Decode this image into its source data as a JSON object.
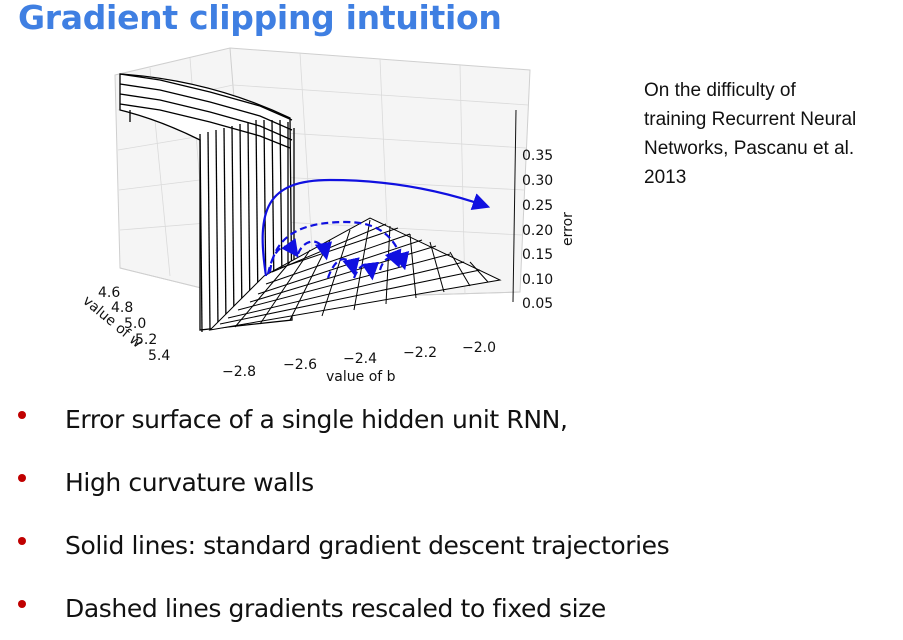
{
  "title": "Gradient clipping intuition",
  "citation": {
    "lines": [
      "On the difficulty of",
      "training Recurrent Neural",
      "Networks, Pascanu et al.",
      "2013"
    ]
  },
  "figure": {
    "z_axis_label": "error",
    "z_ticks": [
      "0.35",
      "0.30",
      "0.25",
      "0.20",
      "0.15",
      "0.10",
      "0.05"
    ],
    "x_axis_label": "value of b",
    "x_ticks": [
      "−2.8",
      "−2.6",
      "−2.4",
      "−2.2",
      "−2.0"
    ],
    "w_axis_label": "value of w",
    "w_ticks": [
      "4.6",
      "4.8",
      "5.0",
      "5.2",
      "5.4"
    ],
    "trajectory_color": "#1010e0"
  },
  "bullets": [
    "Error surface of a single hidden unit RNN,",
    "High curvature walls",
    "Solid lines: standard gradient descent trajectories",
    "Dashed lines gradients rescaled to fixed size"
  ],
  "colors": {
    "title": "#3f7fe2",
    "bullet": "#c00000"
  }
}
